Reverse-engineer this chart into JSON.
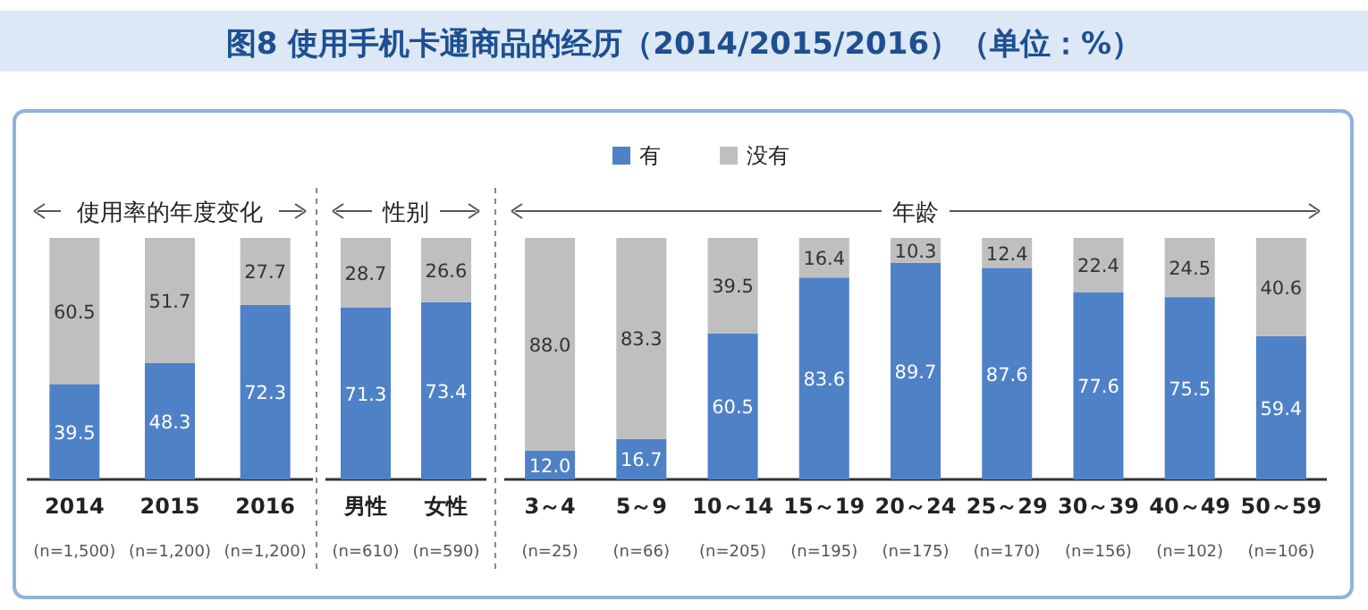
{
  "chart_data": [
    {
      "type": "bar",
      "stacked": true,
      "title": "图8 使用手机卡通商品的经历（2014/2015/2016）（单位：%）",
      "subtitle": "使用率的年度变化",
      "legend": "top",
      "data_labels": true,
      "categories": [
        "2014\n(n=1,500)",
        "2015\n(n=1,200)",
        "2016\n(n=1,200)"
      ],
      "series": [
        {
          "name": "有",
          "color": "#4f81c7",
          "values": [
            39.5,
            48.3,
            72.3
          ]
        },
        {
          "name": "没有",
          "color": "#bfbfbf",
          "values": [
            60.5,
            51.7,
            27.7
          ]
        }
      ]
    },
    {
      "type": "bar",
      "stacked": true,
      "subtitle": "性别",
      "data_labels": true,
      "categories": [
        "男性\n(n=610)",
        "女性\n(n=590)"
      ],
      "series": [
        {
          "name": "有",
          "color": "#4f81c7",
          "values": [
            71.3,
            73.4
          ]
        },
        {
          "name": "没有",
          "color": "#bfbfbf",
          "values": [
            28.7,
            26.6
          ]
        }
      ]
    },
    {
      "type": "bar",
      "stacked": true,
      "subtitle": "年龄",
      "categories": [
        "3～4\n(n=25)",
        "5～9\n(n=66)",
        "10～14\n(n=205)",
        "15～19\n(n=195)",
        "20～24\n(n=175)",
        "25～29\n(n=170)",
        "30～39\n(n=156)",
        "40～49\n(n=102)",
        "50～59\n(n=106)"
      ],
      "series": [
        {
          "name": "有",
          "color": "#4f81c7",
          "values": [
            12.0,
            16.7,
            60.5,
            83.6,
            89.7,
            87.6,
            77.6,
            75.5,
            59.4
          ],
          "value_labels": [
            "12.0",
            "16.7",
            "60.5",
            "83.6",
            "89.7",
            "87.6",
            "77.6",
            "75.5",
            "59.4"
          ]
        },
        {
          "name": "没有",
          "color": "#bfbfbf",
          "values": [
            88.0,
            83.3,
            39.5,
            16.4,
            10.3,
            12.4,
            22.4,
            24.5,
            40.6
          ],
          "value_labels": [
            "88.0",
            "83.3",
            "39.5",
            "16.4",
            "10.3",
            "12.4",
            "22.4",
            "24.5",
            "40.6"
          ]
        }
      ]
    }
  ]
}
